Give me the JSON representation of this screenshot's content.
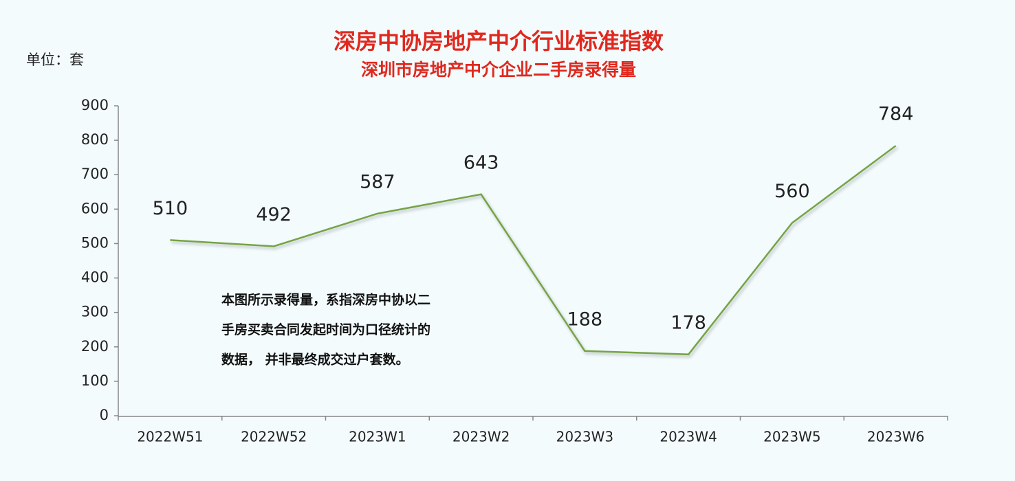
{
  "chart_data": {
    "type": "line",
    "title": "深房中协房地产中介行业标准指数",
    "subtitle": "深圳市房地产中介企业二手房录得量",
    "unit_label": "单位：套",
    "annotation": [
      "本图所示录得量，系指深房中协以二",
      "手房买卖合同发起时间为口径统计的",
      "数据， 并非最终成交过户套数。"
    ],
    "categories": [
      "2022W51",
      "2022W52",
      "2023W1",
      "2023W2",
      "2023W3",
      "2023W4",
      "2023W5",
      "2023W6"
    ],
    "values": [
      510,
      492,
      587,
      643,
      188,
      178,
      560,
      784
    ],
    "color": "#74a444",
    "ylim": [
      0,
      900
    ],
    "yticks": [
      0,
      100,
      200,
      300,
      400,
      500,
      600,
      700,
      800,
      900
    ],
    "grid": false
  }
}
